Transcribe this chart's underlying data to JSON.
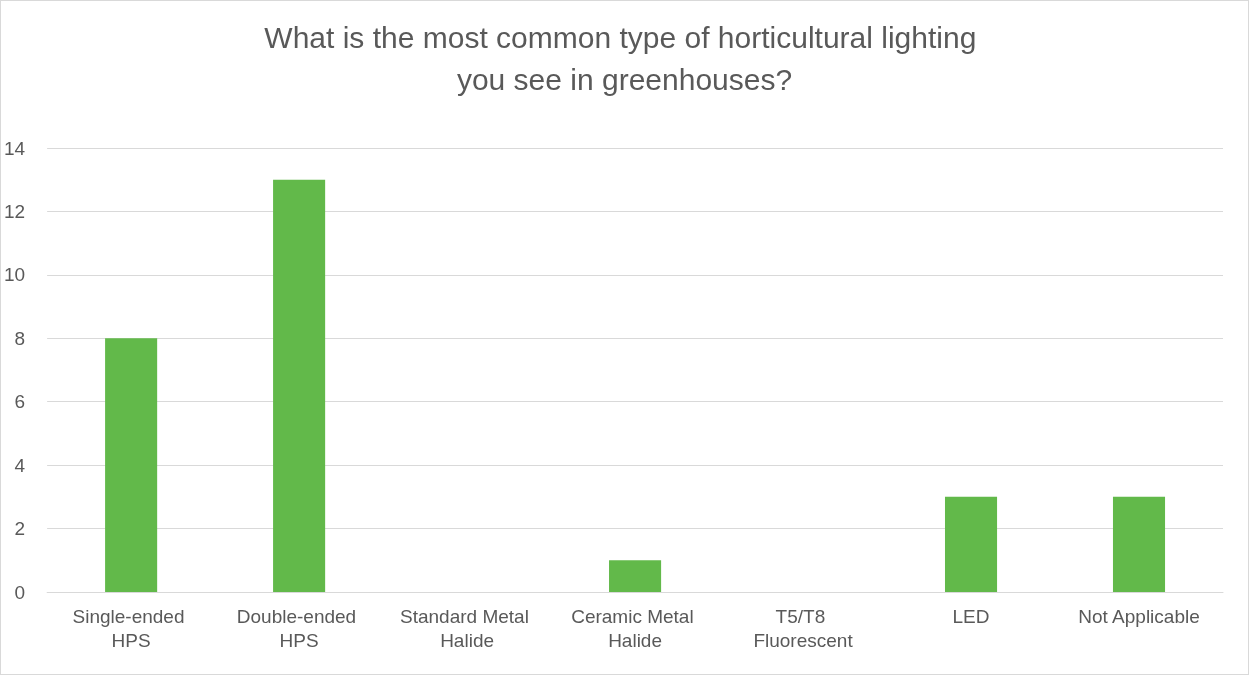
{
  "chart_data": {
    "type": "bar",
    "title": "What is the most common type of horticultural lighting you see in greenhouses?",
    "categories": [
      "Single-ended HPS",
      "Double-ended HPS",
      "Standard Metal Halide",
      "Ceramic Metal Halide",
      "T5/T8 Fluorescent",
      "LED",
      "Not Applicable"
    ],
    "values": [
      8,
      13,
      0,
      1,
      0,
      3,
      3
    ],
    "color": "#62b94a",
    "ylim": [
      0,
      14
    ],
    "yticks": [
      0,
      2,
      4,
      6,
      8,
      10,
      12,
      14
    ],
    "grid": "y"
  }
}
